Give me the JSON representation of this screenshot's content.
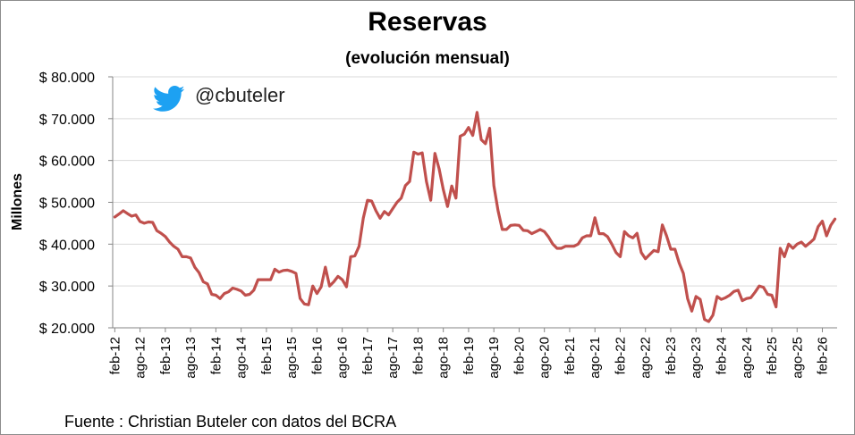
{
  "colors": {
    "line": "#c0504d",
    "grid": "#d9d9d9",
    "axis": "#868686",
    "twitter": "#1da1f2"
  },
  "brand": {
    "handle": "@cbuteler",
    "icon": "twitter-bird-icon"
  },
  "source": "Fuente : Christian Buteler con datos del BCRA",
  "chart_data": {
    "type": "line",
    "title": "Reservas",
    "subtitle": "(evolución mensual)",
    "ylabel": "Millones",
    "xlabel": "",
    "ylim": [
      20000,
      80000
    ],
    "y_ticks": [
      20000,
      30000,
      40000,
      50000,
      60000,
      70000,
      80000
    ],
    "y_tick_labels": [
      "$ 20.000",
      "$ 30.000",
      "$ 40.000",
      "$ 50.000",
      "$ 60.000",
      "$ 70.000",
      "$ 80.000"
    ],
    "x_tick_labels": [
      "feb-12",
      "ago-12",
      "feb-13",
      "ago-13",
      "feb-14",
      "ago-14",
      "feb-15",
      "ago-15",
      "feb-16",
      "ago-16",
      "feb-17",
      "ago-17",
      "feb-18",
      "ago-18",
      "feb-19",
      "ago-19",
      "feb-20",
      "ago-20",
      "feb-21",
      "ago-21",
      "feb-22",
      "ago-22",
      "feb-23",
      "ago-23",
      "feb-24",
      "ago-24",
      "feb-25",
      "ago-25",
      "feb-26"
    ],
    "grid": true,
    "legend": "none",
    "series": [
      {
        "values": [
          46500,
          47200,
          48000,
          47300,
          46700,
          47000,
          45400,
          45000,
          45300,
          45200,
          43200,
          42600,
          41800,
          40500,
          39500,
          38800,
          37000,
          37000,
          36700,
          34500,
          33200,
          31000,
          30500,
          28000,
          27800,
          27000,
          28200,
          28600,
          29500,
          29200,
          28800,
          27800,
          28000,
          29000,
          31500,
          31500,
          31500,
          31500,
          34000,
          33300,
          33700,
          33800,
          33500,
          33000,
          27000,
          25700,
          25500,
          30000,
          28200,
          29800,
          34500,
          30000,
          31000,
          32300,
          31500,
          29800,
          37000,
          37200,
          39500,
          46200,
          50500,
          50300,
          48000,
          46200,
          47800,
          47000,
          48500,
          50000,
          51000,
          54000,
          55000,
          62000,
          61500,
          61800,
          55000,
          50500,
          61700,
          58000,
          53000,
          49000,
          53900,
          51000,
          65800,
          66300,
          67900,
          66000,
          71500,
          65000,
          64000,
          67700,
          54000,
          48000,
          43500,
          43500,
          44500,
          44600,
          44500,
          43300,
          43200,
          42500,
          43000,
          43500,
          43000,
          41700,
          40000,
          39000,
          39000,
          39500,
          39500,
          39500,
          40000,
          41500,
          42000,
          42000,
          46300,
          42500,
          42500,
          41800,
          40000,
          38000,
          37000,
          43000,
          42000,
          41500,
          42600,
          38000,
          36500,
          37500,
          38500,
          38200,
          44600,
          42000,
          38800,
          38800,
          35500,
          33000,
          27000,
          24000,
          27500,
          26800,
          22000,
          21500,
          23000,
          27500,
          26800,
          27200,
          27800,
          28700,
          29000,
          26500,
          27000,
          27200,
          28500,
          30000,
          29700,
          28000,
          27800,
          25000,
          39000,
          37000,
          40000,
          39000,
          40000,
          40500,
          39500,
          40300,
          41200,
          44200,
          45500,
          42000,
          44500,
          46000
        ]
      }
    ]
  }
}
